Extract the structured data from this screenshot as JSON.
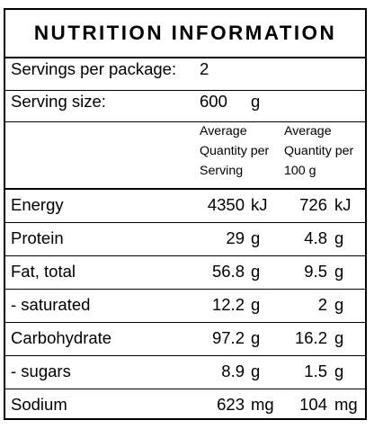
{
  "panel": {
    "title": "NUTRITION INFORMATION",
    "servings_label": "Servings per package:",
    "servings_value": "2",
    "serving_size_label": "Serving size:",
    "serving_size_value": "600",
    "serving_size_unit": "g"
  },
  "columns": {
    "per_serving": [
      "Average",
      "Quantity per",
      "Serving"
    ],
    "per_100g": [
      "Average",
      "Quantity per",
      "100 g"
    ]
  },
  "rows": [
    {
      "nutrient": "Energy",
      "serving_value": "4350",
      "serving_unit": "kJ",
      "per100_value": "726",
      "per100_unit": "kJ"
    },
    {
      "nutrient": "Protein",
      "serving_value": "29",
      "serving_unit": "g",
      "per100_value": "4.8",
      "per100_unit": "g"
    },
    {
      "nutrient": "Fat, total",
      "serving_value": "56.8",
      "serving_unit": "g",
      "per100_value": "9.5",
      "per100_unit": "g"
    },
    {
      "nutrient": "- saturated",
      "serving_value": "12.2",
      "serving_unit": "g",
      "per100_value": "2",
      "per100_unit": "g"
    },
    {
      "nutrient": "Carbohydrate",
      "serving_value": "97.2",
      "serving_unit": "g",
      "per100_value": "16.2",
      "per100_unit": "g"
    },
    {
      "nutrient": "- sugars",
      "serving_value": "8.9",
      "serving_unit": "g",
      "per100_value": "1.5",
      "per100_unit": "g"
    },
    {
      "nutrient": "Sodium",
      "serving_value": "623",
      "serving_unit": "mg",
      "per100_value": "104",
      "per100_unit": "mg"
    }
  ]
}
